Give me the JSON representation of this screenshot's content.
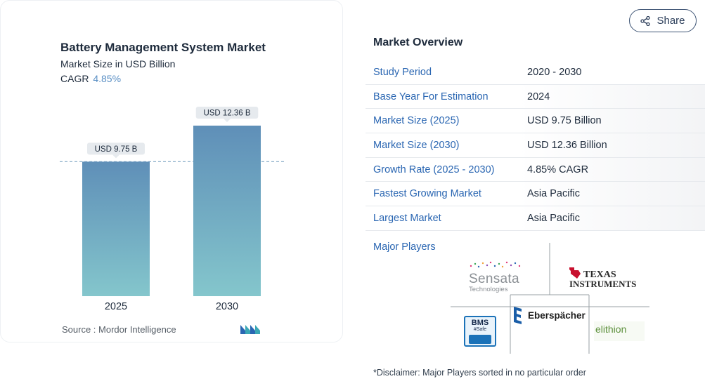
{
  "chart_data": {
    "type": "bar",
    "title": "Battery Management System Market",
    "subtitle": "Market Size in USD Billion",
    "cagr_label": "CAGR",
    "cagr_value": "4.85%",
    "categories": [
      "2025",
      "2030"
    ],
    "values": [
      9.75,
      12.36
    ],
    "data_labels": [
      "USD 9.75 B",
      "USD 12.36 B"
    ],
    "ylim": [
      0,
      12.36
    ],
    "grid": false,
    "reference_line": "dashed line at first bar value",
    "colors": {
      "bar_top": "#5f8fb8",
      "bar_bottom": "#84c6cc",
      "cagr": "#5a8fc4",
      "dashed_line": "#7fa6c3"
    },
    "source": "Source :  Mordor Intelligence"
  },
  "share": {
    "label": "Share",
    "icon": "share-icon"
  },
  "overview": {
    "heading": "Market Overview",
    "rows": [
      {
        "label": "Study Period",
        "value": "2020 - 2030"
      },
      {
        "label": "Base Year For Estimation",
        "value": "2024"
      },
      {
        "label": "Market Size (2025)",
        "value": "USD 9.75 Billion"
      },
      {
        "label": "Market Size (2030)",
        "value": "USD 12.36 Billion"
      },
      {
        "label": "Growth Rate (2025 - 2030)",
        "value": "4.85% CAGR"
      },
      {
        "label": "Fastest Growing Market",
        "value": "Asia Pacific"
      },
      {
        "label": "Largest Market",
        "value": "Asia Pacific"
      }
    ],
    "players_label": "Major Players",
    "players": [
      {
        "name": "Sensata",
        "sub": "Technologies"
      },
      {
        "name": "Texas",
        "sub": "Instruments"
      },
      {
        "name": "BMS",
        "sub": "#Safe"
      },
      {
        "name": "Eberspächer"
      },
      {
        "name": "elithion"
      }
    ],
    "disclaimer": "*Disclaimer: Major Players sorted in no particular order"
  }
}
